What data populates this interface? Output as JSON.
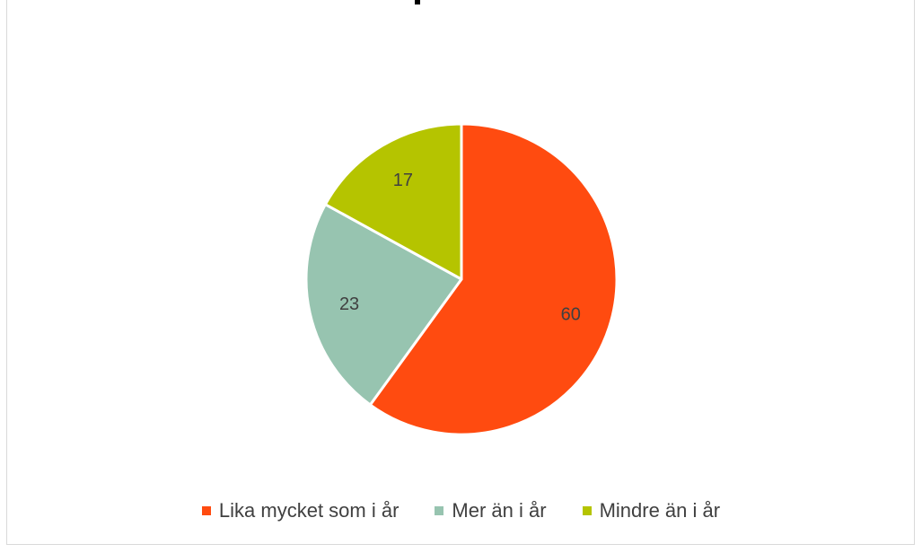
{
  "chart_data": {
    "type": "pie",
    "categories": [
      "Lika mycket som i år",
      "Mer än i år",
      "Mindre än i år"
    ],
    "values": [
      60,
      23,
      17
    ],
    "data_labels": [
      "60",
      "23",
      "17"
    ],
    "colors": [
      "#ff4b10",
      "#97c4b0",
      "#b5c400"
    ],
    "slice_border": "#ffffff",
    "start_angle_deg": 0,
    "direction": "clockwise",
    "legend_position": "bottom"
  }
}
